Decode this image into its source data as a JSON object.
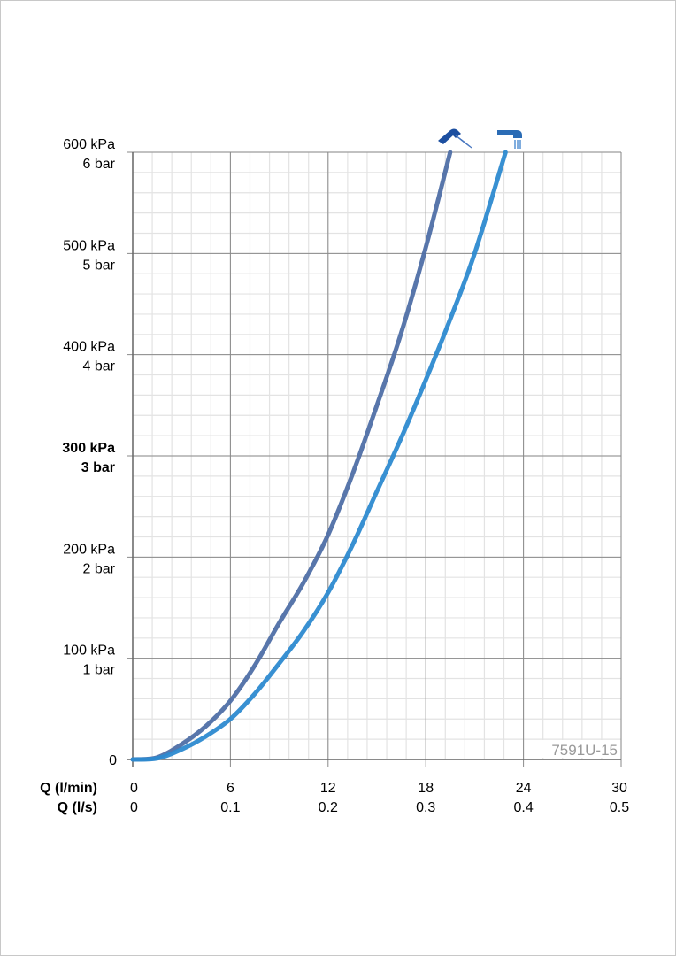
{
  "chart_data": {
    "type": "line",
    "title": "",
    "watermark_code": "7591U-15",
    "x_axis": {
      "labels": [
        "Q (l/min)",
        "Q (l/s)"
      ],
      "ticks_lmin": [
        "0",
        "6",
        "12",
        "18",
        "24",
        "30"
      ],
      "ticks_ls": [
        "0",
        "0.1",
        "0.2",
        "0.3",
        "0.4",
        "0.5"
      ],
      "range": [
        0,
        30
      ],
      "minor_step": 1.2
    },
    "y_axis": {
      "range": [
        0,
        600
      ],
      "unit": "kPa",
      "minor_step": 20,
      "ticks": [
        {
          "value": 0,
          "kpa": "0",
          "bar": "",
          "bold": false
        },
        {
          "value": 100,
          "kpa": "100 kPa",
          "bar": "1 bar",
          "bold": false
        },
        {
          "value": 200,
          "kpa": "200 kPa",
          "bar": "2 bar",
          "bold": false
        },
        {
          "value": 300,
          "kpa": "300 kPa",
          "bar": "3 bar",
          "bold": true
        },
        {
          "value": 400,
          "kpa": "400 kPa",
          "bar": "4 bar",
          "bold": false
        },
        {
          "value": 500,
          "kpa": "500 kPa",
          "bar": "5 bar",
          "bold": false
        },
        {
          "value": 600,
          "kpa": "600 kPa",
          "bar": "6 bar",
          "bold": false
        }
      ]
    },
    "grid": true,
    "series": [
      {
        "icon": "hand-shower-icon",
        "color": "#4f6fa6",
        "x": [
          0,
          1.5,
          3,
          4.5,
          6,
          7.5,
          9,
          10.5,
          12,
          13.5,
          15,
          16.5,
          18,
          19.5
        ],
        "y": [
          0,
          2,
          15,
          33,
          58,
          93,
          135,
          175,
          222,
          282,
          350,
          422,
          506,
          600
        ]
      },
      {
        "icon": "bath-spout-icon",
        "color": "#2d8ad0",
        "x": [
          0,
          1.5,
          3,
          4.5,
          6,
          7.5,
          9,
          10.5,
          12,
          13.5,
          15,
          16.5,
          18,
          19.5,
          21,
          22.9
        ],
        "y": [
          0,
          1,
          10,
          23,
          40,
          65,
          95,
          127,
          165,
          212,
          265,
          318,
          375,
          435,
          500,
          600
        ]
      }
    ]
  }
}
